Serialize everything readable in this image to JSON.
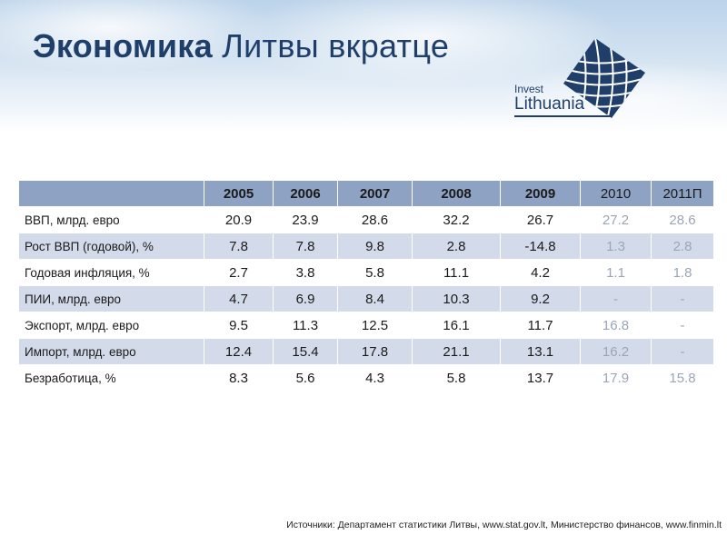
{
  "title": {
    "bold": "Экономика",
    "rest": " Литвы вкратце"
  },
  "logo": {
    "invest": "Invest",
    "lithuania": "Lithuania",
    "color": "#1f3f6a"
  },
  "colors": {
    "header": "#8ea2c4",
    "stripe": "#d3dbea",
    "projection": "#9aa6b8"
  },
  "table": {
    "years": [
      "2005",
      "2006",
      "2007",
      "2008",
      "2009",
      "2010",
      "2011П"
    ],
    "rows": [
      {
        "label": "ВВП, млрд. евро",
        "values": [
          "20.9",
          "23.9",
          "28.6",
          "32.2",
          "26.7",
          "27.2",
          "28.6"
        ]
      },
      {
        "label": "Рост ВВП (годовой), %",
        "values": [
          "7.8",
          "7.8",
          "9.8",
          "2.8",
          "-14.8",
          "1.3",
          "2.8"
        ]
      },
      {
        "label": "Годовая инфляция, %",
        "values": [
          "2.7",
          "3.8",
          "5.8",
          "11.1",
          "4.2",
          "1.1",
          "1.8"
        ]
      },
      {
        "label": "ПИИ, млрд. евро",
        "values": [
          "4.7",
          "6.9",
          "8.4",
          "10.3",
          "9.2",
          "-",
          "-"
        ]
      },
      {
        "label": "Экспорт, млрд. евро",
        "values": [
          "9.5",
          "11.3",
          "12.5",
          "16.1",
          "11.7",
          "16.8",
          "-"
        ]
      },
      {
        "label": "Импорт, млрд. евро",
        "values": [
          "12.4",
          "15.4",
          "17.8",
          "21.1",
          "13.1",
          "16.2",
          "-"
        ]
      },
      {
        "label": "Безработица, %",
        "values": [
          "8.3",
          "5.6",
          "4.3",
          "5.8",
          "13.7",
          "17.9",
          "15.8"
        ]
      }
    ]
  },
  "source": "Источники: Департамент статистики Литвы, www.stat.gov.lt, Министерство финансов, www.finmin.lt"
}
